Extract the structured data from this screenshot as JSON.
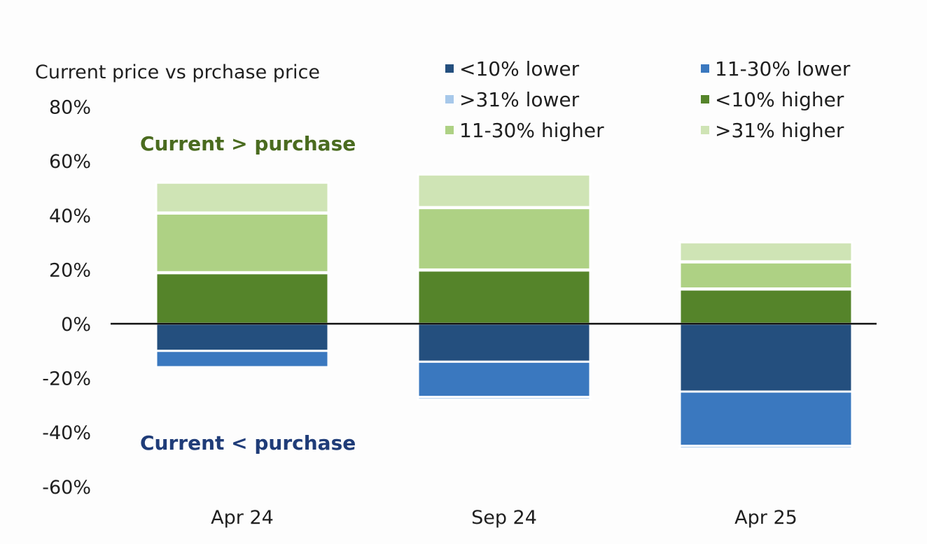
{
  "chart_data": {
    "type": "bar",
    "stacked": true,
    "ytitle": "Current price vs prchase price",
    "yunit": "%",
    "ylim": [
      -60,
      80
    ],
    "yticks": [
      80,
      60,
      40,
      20,
      0,
      -20,
      -40,
      -60
    ],
    "ytick_labels": [
      "80%",
      "60%",
      "40%",
      "20%",
      "0%",
      "-20%",
      "-40%",
      "-60%"
    ],
    "categories": [
      "Apr 24",
      "Sep 24",
      "Apr 25"
    ],
    "legend_position": "top-right",
    "series": [
      {
        "name": "<10% lower",
        "color": "#244f7e",
        "values": [
          -10,
          -14,
          -25
        ]
      },
      {
        "name": "11-30% lower",
        "color": "#3a78bf",
        "values": [
          -6,
          -13,
          -20
        ]
      },
      {
        "name": ">31% lower",
        "color": "#a7c8ea",
        "values": [
          0,
          -1,
          -1
        ]
      },
      {
        "name": "<10% higher",
        "color": "#55842a",
        "values": [
          19,
          20,
          13
        ]
      },
      {
        "name": "11-30% higher",
        "color": "#aed184",
        "values": [
          22,
          23,
          10
        ]
      },
      {
        "name": ">31% higher",
        "color": "#cfe4b5",
        "values": [
          11,
          12,
          7
        ]
      }
    ],
    "legend_order": [
      "<10% lower",
      "11-30% lower",
      ">31% lower",
      "<10% higher",
      "11-30% higher",
      ">31% higher"
    ],
    "annotations": [
      {
        "text": "Current > purchase",
        "color": "#4a6b1f"
      },
      {
        "text": "Current < purchase",
        "color": "#1f3c78"
      }
    ]
  }
}
